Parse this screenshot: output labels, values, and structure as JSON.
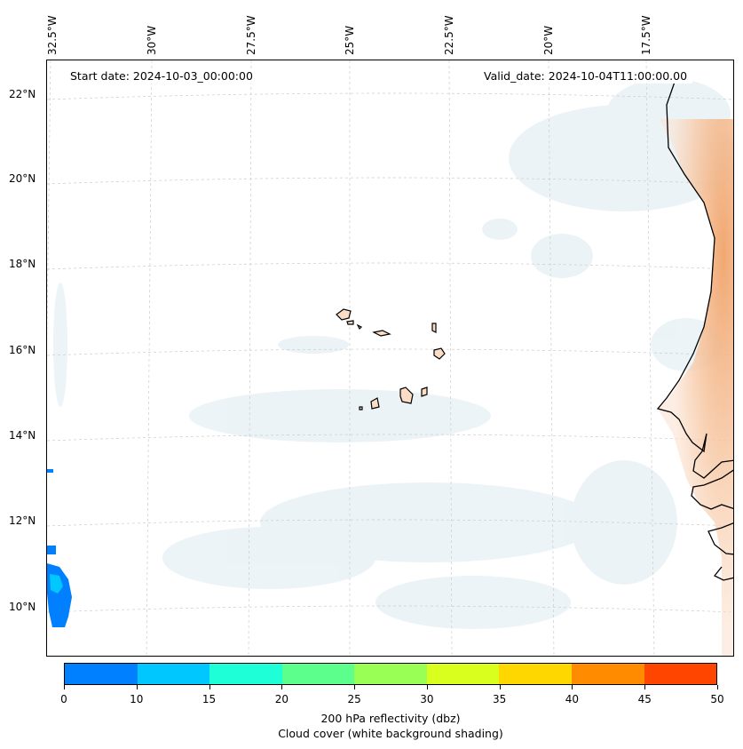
{
  "map": {
    "start_label": "Start date: 2024-10-03_00:00:00",
    "valid_label": "Valid_date: 2024-10-04T11:00:00.00",
    "lon_labels": [
      "32.5°W",
      "30°W",
      "27.5°W",
      "25°W",
      "22.5°W",
      "20°W",
      "17.5°W"
    ],
    "lat_labels": [
      "22°N",
      "20°N",
      "18°N",
      "16°N",
      "14°N",
      "12°N",
      "10°N"
    ],
    "extent": {
      "lon_min": -32.6,
      "lon_max": -15.3,
      "lat_min": 8.8,
      "lat_max": 22.8
    },
    "grid": true,
    "layers": [
      "cloud cover (white background shading)",
      "200 hPa reflectivity",
      "coastlines"
    ]
  },
  "colorbar": {
    "ticks": [
      "0",
      "10",
      "15",
      "20",
      "25",
      "30",
      "35",
      "40",
      "45",
      "50"
    ],
    "colors": [
      "#0080ff",
      "#00c8ff",
      "#1effd8",
      "#5cff8c",
      "#99ff55",
      "#d9ff1e",
      "#ffd700",
      "#ff8c00",
      "#ff4500"
    ],
    "label_line1": "200 hPa reflectivity (dbz)",
    "label_line2": "Cloud cover (white background shading)"
  }
}
